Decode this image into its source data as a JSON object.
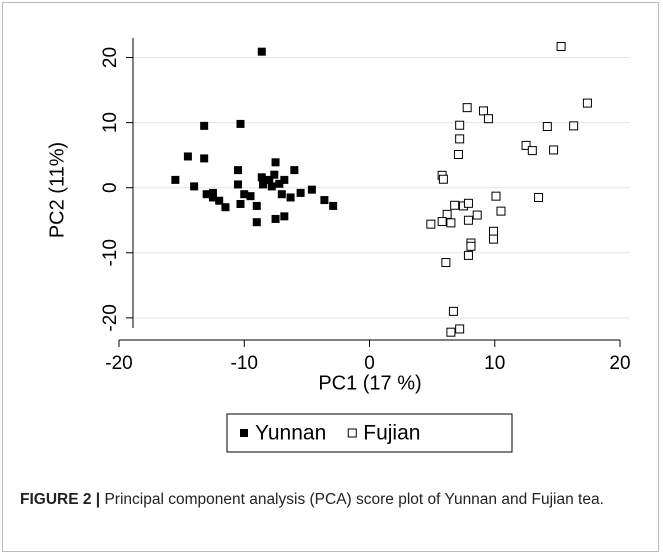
{
  "chart_data": {
    "type": "scatter",
    "xlabel": "PC1 (17 %)",
    "ylabel": "PC2 (11%)",
    "xlim": [
      -20,
      20.8
    ],
    "ylim": [
      -23.4,
      23
    ],
    "xticks": [
      -20,
      -10,
      0,
      10,
      20
    ],
    "yticks": [
      -20,
      -10,
      0,
      10,
      20
    ],
    "grid": true,
    "legend": "bottom",
    "series": [
      {
        "name": "Yunnan",
        "color": "#000000",
        "marker": "filled-square",
        "x": [
          -8.6,
          -10.3,
          -13.2,
          -14.5,
          -13.2,
          -15.5,
          -14,
          -13,
          -12.5,
          -12.5,
          -12,
          -11.5,
          -10.5,
          -10.5,
          -10.3,
          -9,
          -9,
          -8.6,
          -8.5,
          -8,
          -7.8,
          -7.6,
          -7.5,
          -7.5,
          -7.2,
          -7,
          -6.8,
          -6.8,
          -6.3,
          -6,
          -5.5,
          -4.6,
          -3.6,
          -2.9,
          -10,
          -9.5
        ],
        "values": [
          20.9,
          9.8,
          9.5,
          4.8,
          4.5,
          1.2,
          0.2,
          -1,
          -1.5,
          -0.8,
          -2,
          -3,
          2.7,
          0.5,
          -2.5,
          -2.8,
          -5.3,
          1.6,
          0.5,
          1.2,
          0.2,
          2,
          3.9,
          -4.8,
          0.6,
          -1,
          1.2,
          -4.4,
          -1.5,
          2.7,
          -0.8,
          -0.3,
          -1.9,
          -2.8,
          -1,
          -1.3
        ]
      },
      {
        "name": "Fujian",
        "color": "#000000",
        "marker": "hollow-square",
        "x": [
          15.3,
          17.4,
          16.3,
          14.2,
          14.7,
          12.5,
          13,
          7.8,
          9.1,
          9.5,
          7.2,
          7.2,
          7.1,
          5.8,
          5.9,
          10.1,
          13.5,
          6.8,
          7.5,
          7.9,
          10.5,
          6.2,
          8.6,
          7.9,
          5.8,
          4.9,
          6.5,
          9.9,
          9.9,
          8.1,
          8.1,
          7.9,
          6.1,
          6.7,
          7.2,
          6.5
        ],
        "values": [
          21.7,
          13,
          9.5,
          9.4,
          5.8,
          6.5,
          5.7,
          12.3,
          11.8,
          10.6,
          9.6,
          7.5,
          5.1,
          1.9,
          1.3,
          -1.3,
          -1.5,
          -2.7,
          -2.8,
          -2.4,
          -3.6,
          -4.1,
          -4.2,
          -5,
          -5.2,
          -5.6,
          -5.4,
          -6.7,
          -7.9,
          -8.5,
          -9,
          -10.4,
          -11.5,
          -19,
          -21.7,
          -22.2
        ]
      }
    ]
  },
  "caption": {
    "label": "FIGURE 2 |",
    "text": "Principal component analysis (PCA) score plot of Yunnan and Fujian tea."
  }
}
